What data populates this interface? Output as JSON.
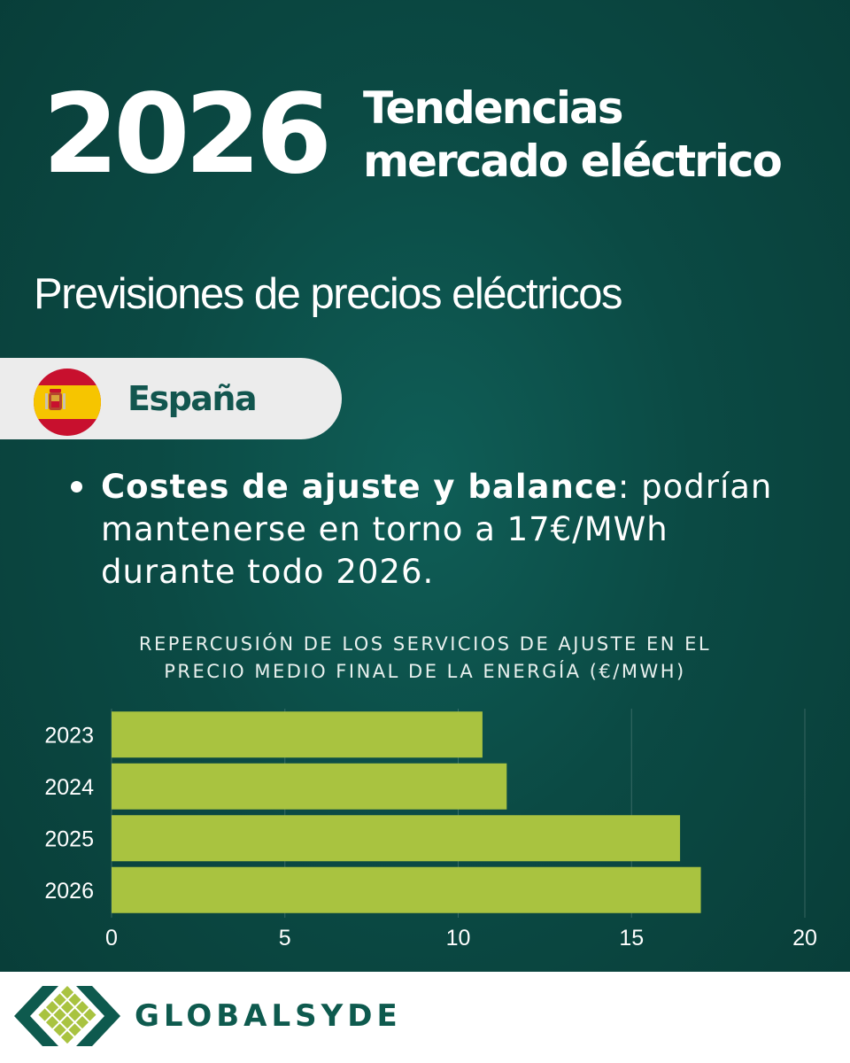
{
  "header": {
    "year": "2026",
    "title_line1": "Tendencias",
    "title_line2": "mercado eléctrico"
  },
  "subtitle": "Previsiones de precios eléctricos",
  "country": {
    "label": "España",
    "flag_icon": "spain-flag-icon"
  },
  "bullet": {
    "bold_text": "Costes de ajuste y balance",
    "text": ": podrían mantenerse en torno a 17€/MWh durante todo 2026."
  },
  "chart_title": {
    "line1": "REPERCUSIÓN DE LOS SERVICIOS DE AJUSTE EN EL",
    "line2": "PRECIO MEDIO FINAL DE LA ENERGÍA (€/MWH)"
  },
  "chart_data": {
    "type": "bar",
    "orientation": "horizontal",
    "title": "REPERCUSIÓN DE LOS SERVICIOS DE AJUSTE EN EL PRECIO MEDIO FINAL DE LA ENERGÍA (€/MWH)",
    "categories": [
      "2023",
      "2024",
      "2025",
      "2026"
    ],
    "values": [
      10.7,
      11.4,
      16.4,
      17.0
    ],
    "xlim": [
      0,
      20
    ],
    "xticks": [
      0,
      5,
      10,
      15,
      20
    ],
    "grid": true,
    "bar_color": "#a9c340"
  },
  "footer": {
    "brand": "GLOBALSYDE",
    "logo_icon": "globalsyde-logo-icon"
  },
  "colors": {
    "background": "#0b4a44",
    "accent_green": "#a9c340",
    "brand_green": "#0e5a4e",
    "country_text": "#12564f"
  }
}
